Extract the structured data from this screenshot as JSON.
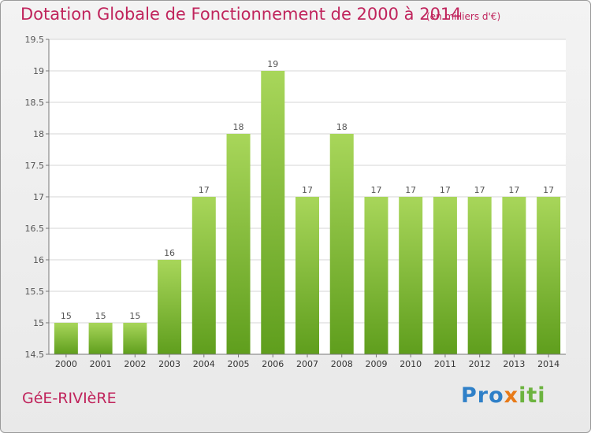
{
  "chart_data": {
    "type": "bar",
    "title": "Dotation Globale de Fonctionnement de 2000 à 2014",
    "unit_label": "(en milliers d'€)",
    "categories": [
      "2000",
      "2001",
      "2002",
      "2003",
      "2004",
      "2005",
      "2006",
      "2007",
      "2008",
      "2009",
      "2010",
      "2011",
      "2012",
      "2013",
      "2014"
    ],
    "values": [
      15,
      15,
      15,
      16,
      17,
      18,
      19,
      17,
      18,
      17,
      17,
      17,
      17,
      17,
      17
    ],
    "data_labels": [
      "15",
      "15",
      "15",
      "16",
      "17",
      "18",
      "19",
      "17",
      "18",
      "17",
      "17",
      "17",
      "17",
      "17",
      "17"
    ],
    "ylim": [
      14.5,
      19.5
    ],
    "yticks": [
      14.5,
      15,
      15.5,
      16,
      16.5,
      17,
      17.5,
      18,
      18.5,
      19,
      19.5
    ],
    "ytick_labels": [
      "14.5",
      "15",
      "15.5",
      "16",
      "16.5",
      "17",
      "17.5",
      "18",
      "18.5",
      "19",
      "19.5"
    ],
    "xlabel": "",
    "ylabel": "",
    "grid": true,
    "bar_color_top": "#a8d65a",
    "bar_color_bottom": "#5f9e1d"
  },
  "commune_name": "GéE-RIVIèRE",
  "logo": {
    "part1": "Pro",
    "part2": "x",
    "part3": "iti"
  },
  "colors": {
    "title": "#c0245c",
    "grid": "#d4d4d4",
    "axis": "#777777",
    "plot_bg": "#ffffff"
  }
}
